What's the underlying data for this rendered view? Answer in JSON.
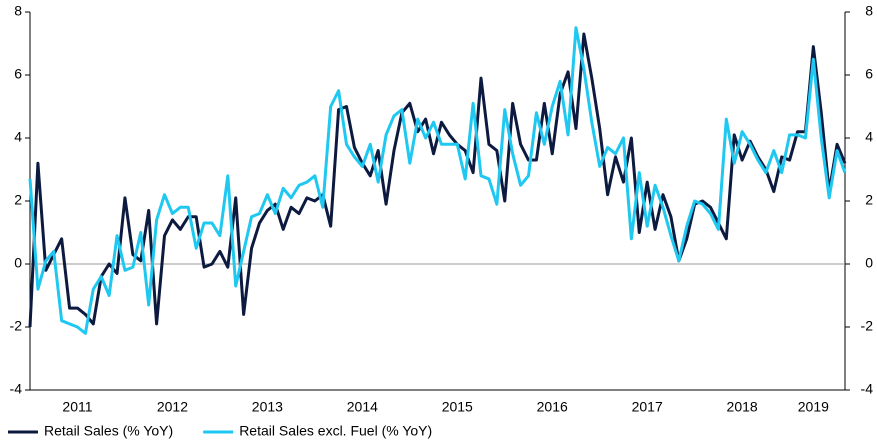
{
  "chart_data": {
    "type": "line",
    "categories": [
      null,
      null,
      null,
      null,
      null,
      null,
      "2011",
      null,
      null,
      null,
      null,
      null,
      null,
      null,
      null,
      null,
      null,
      null,
      "2012",
      null,
      null,
      null,
      null,
      null,
      null,
      null,
      null,
      null,
      null,
      null,
      "2013",
      null,
      null,
      null,
      null,
      null,
      null,
      null,
      null,
      null,
      null,
      null,
      "2014",
      null,
      null,
      null,
      null,
      null,
      null,
      null,
      null,
      null,
      null,
      null,
      "2015",
      null,
      null,
      null,
      null,
      null,
      null,
      null,
      null,
      null,
      null,
      null,
      "2016",
      null,
      null,
      null,
      null,
      null,
      null,
      null,
      null,
      null,
      null,
      null,
      "2017",
      null,
      null,
      null,
      null,
      null,
      null,
      null,
      null,
      null,
      null,
      null,
      "2018",
      null,
      null,
      null,
      null,
      null,
      null,
      null,
      null,
      "2019",
      null,
      null,
      null,
      null
    ],
    "series": [
      {
        "name": "Retail Sales (% YoY)",
        "color": "#0d1a40",
        "values": [
          -2,
          3.2,
          -0.2,
          0.3,
          0.8,
          -1.4,
          -1.4,
          -1.6,
          -1.9,
          -0.4,
          0,
          -0.3,
          2.1,
          0.3,
          0.1,
          1.7,
          -1.9,
          0.9,
          1.4,
          1.1,
          1.5,
          1.5,
          -0.1,
          0,
          0.4,
          -0.1,
          2.1,
          -1.6,
          0.5,
          1.3,
          1.7,
          1.9,
          1.1,
          1.8,
          1.6,
          2.1,
          2,
          2.2,
          1.2,
          4.9,
          5,
          3.7,
          3.2,
          2.8,
          3.6,
          1.9,
          3.6,
          4.8,
          5.1,
          4.2,
          4.6,
          3.5,
          4.5,
          4.1,
          3.8,
          3.6,
          2.9,
          5.9,
          3.8,
          3.6,
          2,
          5.1,
          3.8,
          3.3,
          3.3,
          5.1,
          3.5,
          5.4,
          6.1,
          4.3,
          7.3,
          5.9,
          4.3,
          2.2,
          3.4,
          2.6,
          4,
          1,
          2.6,
          1.1,
          2.2,
          1.5,
          0.1,
          0.8,
          1.9,
          2,
          1.8,
          1.3,
          0.8,
          4.1,
          3.3,
          3.9,
          3.4,
          3,
          2.3,
          3.4,
          3.3,
          4.2,
          4.2,
          6.9,
          4.8,
          2.3,
          3.8,
          3.2
        ]
      },
      {
        "name": "Retail Sales excl. Fuel (% YoY)",
        "color": "#1ec8f0",
        "values": [
          2.7,
          -0.8,
          0.1,
          0.4,
          -1.8,
          -1.9,
          -2,
          -2.2,
          -0.8,
          -0.4,
          -1,
          0.9,
          -0.2,
          -0.1,
          1,
          -1.3,
          1.4,
          2.2,
          1.6,
          1.8,
          1.8,
          0.5,
          1.3,
          1.3,
          0.9,
          2.8,
          -0.7,
          0.4,
          1.5,
          1.6,
          2.2,
          1.6,
          2.4,
          2.1,
          2.5,
          2.6,
          2.8,
          1.8,
          5,
          5.5,
          3.8,
          3.4,
          3.1,
          3.8,
          2.6,
          4.1,
          4.7,
          4.9,
          3.2,
          4.6,
          4,
          4.5,
          3.8,
          3.8,
          3.8,
          2.7,
          5.1,
          2.8,
          2.7,
          1.9,
          4.9,
          3.5,
          2.5,
          2.8,
          4.8,
          3.8,
          5,
          5.8,
          4.1,
          7.5,
          6.2,
          4.5,
          3.1,
          3.7,
          3.5,
          4,
          0.8,
          2.9,
          1.2,
          2.5,
          1.8,
          0.9,
          0.1,
          1.2,
          2,
          1.9,
          1.6,
          1.1,
          4.6,
          3.2,
          4.2,
          3.8,
          3.3,
          2.9,
          3.6,
          2.9,
          4.1,
          4.1,
          4,
          6.5,
          4,
          2.1,
          3.6,
          2.9
        ]
      }
    ],
    "ylim": [
      -4,
      8
    ],
    "yticks": [
      -4,
      -2,
      0,
      2,
      4,
      6,
      8
    ],
    "y2lim": [
      -4,
      8
    ],
    "y2ticks": [
      -4,
      -2,
      0,
      2,
      4,
      6,
      8
    ],
    "legend": "bottom-left"
  }
}
